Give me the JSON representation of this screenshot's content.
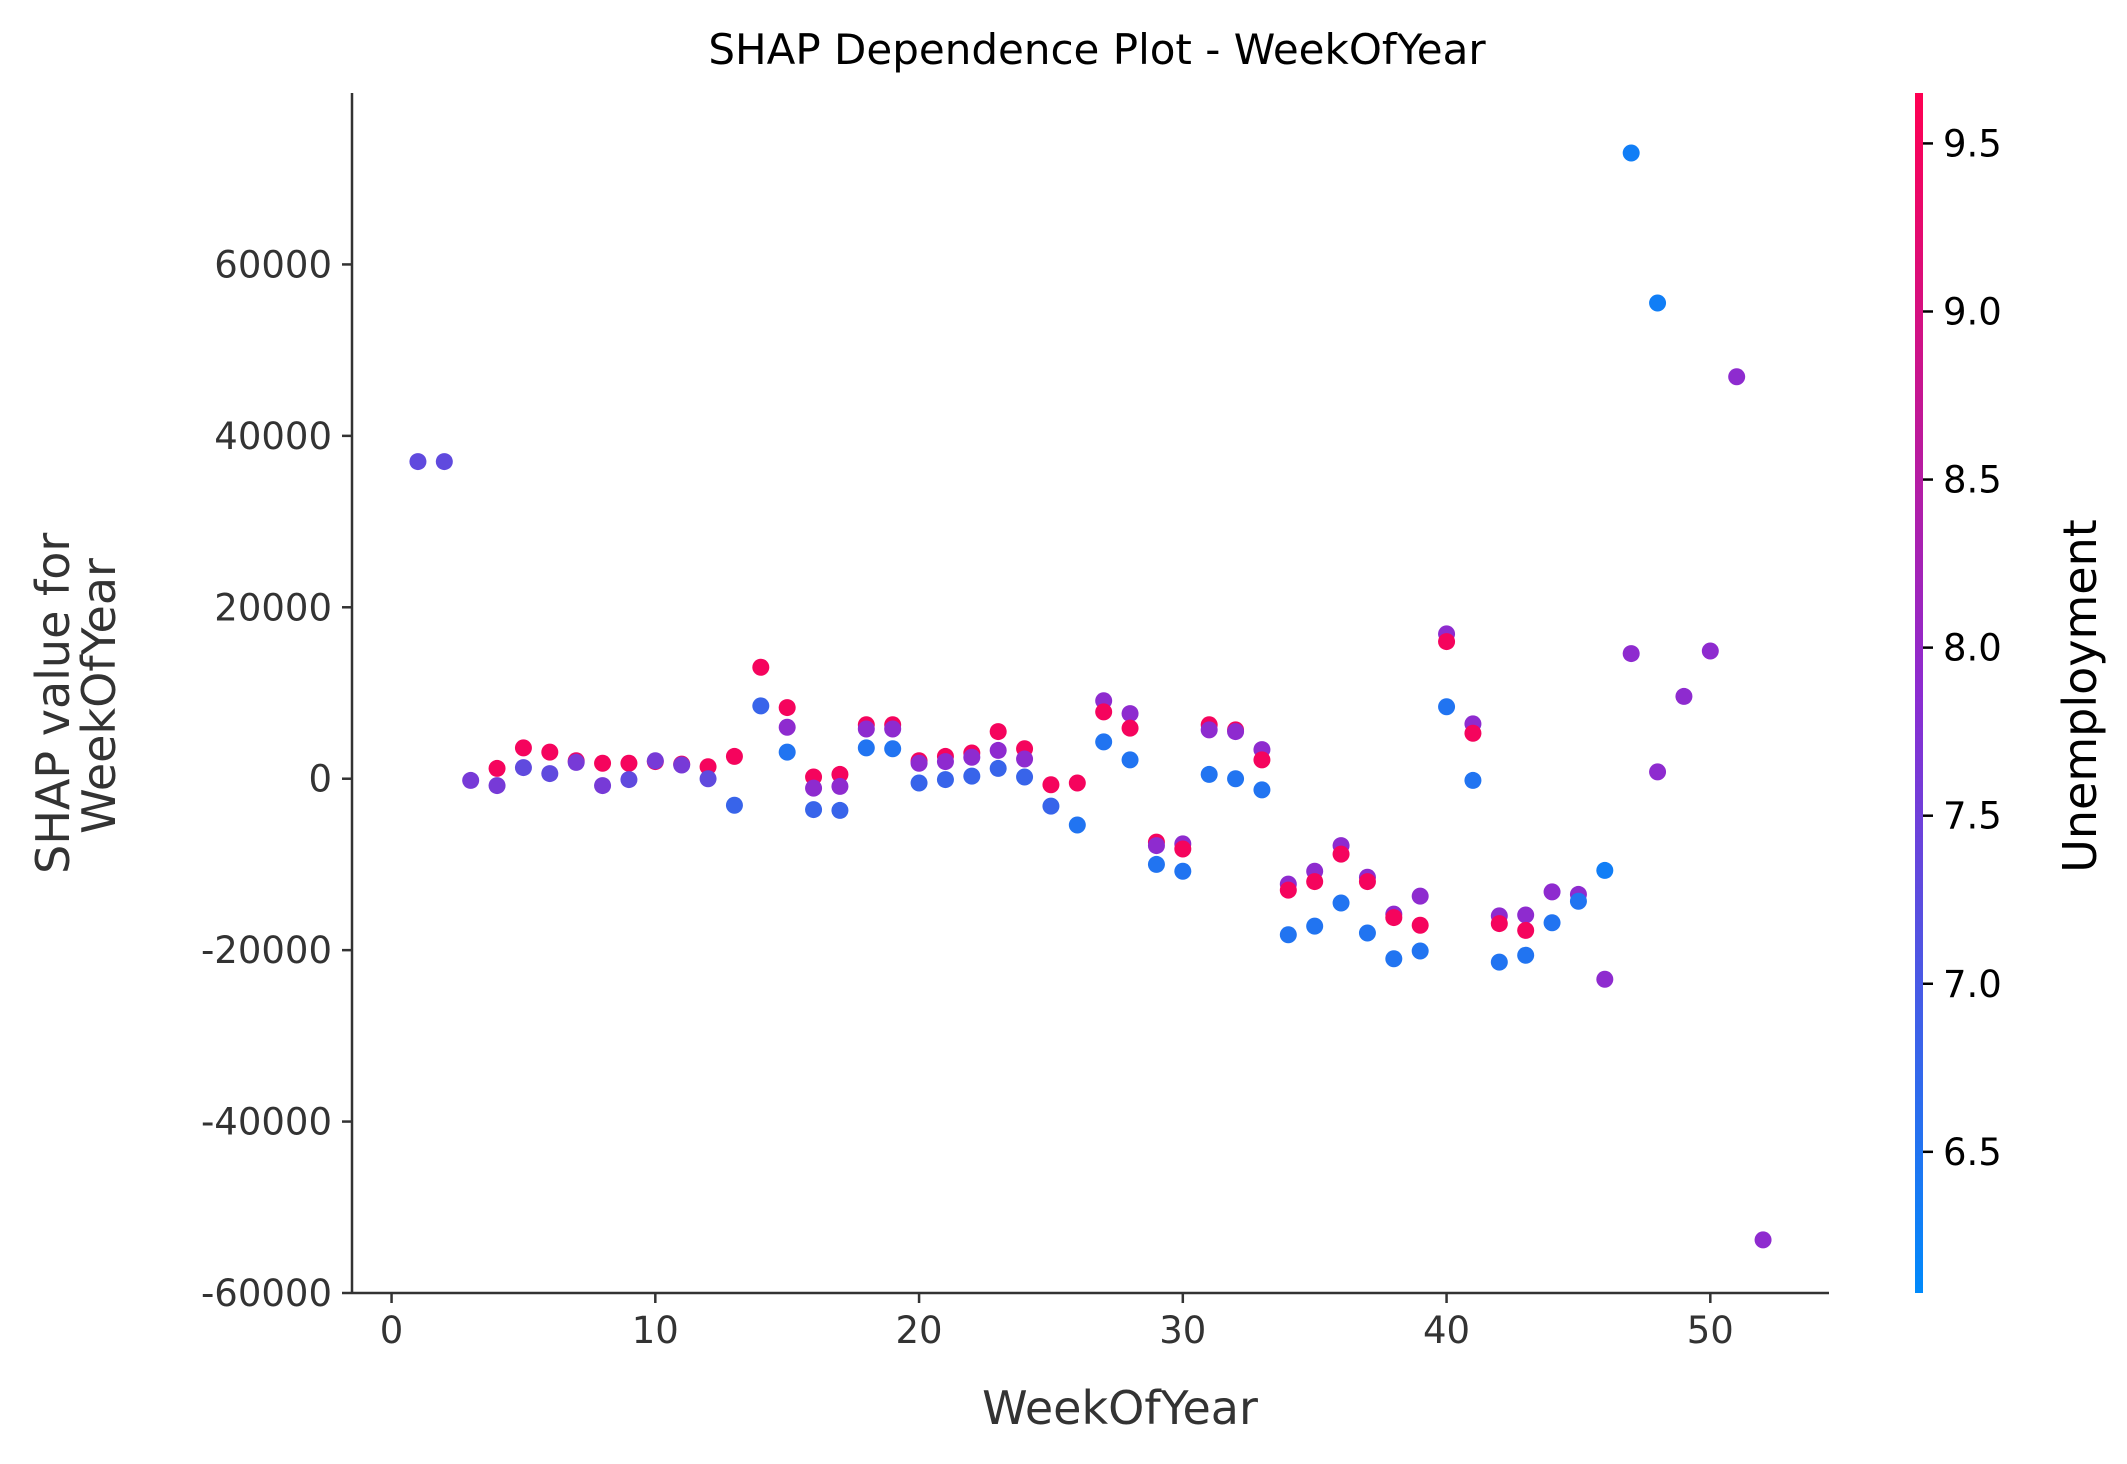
{
  "chart_data": {
    "type": "scatter",
    "title": "SHAP Dependence Plot - WeekOfYear",
    "xlabel": "WeekOfYear",
    "ylabel_lines": [
      "SHAP value for",
      "WeekOfYear"
    ],
    "xlim": [
      -1.5,
      54.5
    ],
    "ylim": [
      -60000,
      80000
    ],
    "xticks": [
      0,
      10,
      20,
      30,
      40,
      50
    ],
    "yticks": [
      -60000,
      -40000,
      -20000,
      0,
      20000,
      40000,
      60000
    ],
    "grid": false,
    "colorbar": {
      "label": "Unemployment",
      "range": [
        6.08,
        9.65
      ],
      "ticks": [
        6.5,
        7.0,
        7.5,
        8.0,
        8.5,
        9.0,
        9.5
      ],
      "color_low": "#008afb",
      "color_mid": "#8c2cd1",
      "color_high": "#ff0052"
    },
    "points": [
      {
        "x": 1,
        "y": 37000,
        "c": 7.3
      },
      {
        "x": 2,
        "y": 37000,
        "c": 7.3
      },
      {
        "x": 3,
        "y": -200,
        "c": 7.6
      },
      {
        "x": 4,
        "y": 1200,
        "c": 9.5
      },
      {
        "x": 4,
        "y": -800,
        "c": 7.6
      },
      {
        "x": 5,
        "y": 3600,
        "c": 9.5
      },
      {
        "x": 5,
        "y": 1300,
        "c": 7.3
      },
      {
        "x": 6,
        "y": 3100,
        "c": 9.5
      },
      {
        "x": 6,
        "y": 600,
        "c": 7.3
      },
      {
        "x": 7,
        "y": 2100,
        "c": 9.3
      },
      {
        "x": 7,
        "y": 1900,
        "c": 7.6
      },
      {
        "x": 8,
        "y": 1800,
        "c": 9.5
      },
      {
        "x": 8,
        "y": -800,
        "c": 7.6
      },
      {
        "x": 9,
        "y": 1800,
        "c": 9.5
      },
      {
        "x": 9,
        "y": -100,
        "c": 7.3
      },
      {
        "x": 10,
        "y": 2000,
        "c": 9.5
      },
      {
        "x": 10,
        "y": 2100,
        "c": 7.6
      },
      {
        "x": 11,
        "y": 1700,
        "c": 9.5
      },
      {
        "x": 11,
        "y": 1600,
        "c": 7.6
      },
      {
        "x": 12,
        "y": 1400,
        "c": 9.5
      },
      {
        "x": 12,
        "y": 0,
        "c": 7.3
      },
      {
        "x": 13,
        "y": 2600,
        "c": 9.5
      },
      {
        "x": 13,
        "y": -3100,
        "c": 6.8
      },
      {
        "x": 14,
        "y": 13000,
        "c": 9.5
      },
      {
        "x": 14,
        "y": 8500,
        "c": 6.8
      },
      {
        "x": 15,
        "y": 8300,
        "c": 9.5
      },
      {
        "x": 15,
        "y": 6000,
        "c": 7.9
      },
      {
        "x": 15,
        "y": 3100,
        "c": 6.5
      },
      {
        "x": 16,
        "y": 200,
        "c": 9.5
      },
      {
        "x": 16,
        "y": -1100,
        "c": 7.9
      },
      {
        "x": 16,
        "y": -3600,
        "c": 6.8
      },
      {
        "x": 17,
        "y": 500,
        "c": 9.5
      },
      {
        "x": 17,
        "y": -900,
        "c": 7.9
      },
      {
        "x": 17,
        "y": -3700,
        "c": 6.8
      },
      {
        "x": 18,
        "y": 6300,
        "c": 9.5
      },
      {
        "x": 18,
        "y": 5800,
        "c": 7.9
      },
      {
        "x": 18,
        "y": 3600,
        "c": 6.5
      },
      {
        "x": 19,
        "y": 6300,
        "c": 9.5
      },
      {
        "x": 19,
        "y": 5800,
        "c": 7.9
      },
      {
        "x": 19,
        "y": 3500,
        "c": 6.5
      },
      {
        "x": 20,
        "y": 2100,
        "c": 9.5
      },
      {
        "x": 20,
        "y": 1800,
        "c": 7.9
      },
      {
        "x": 20,
        "y": -500,
        "c": 6.8
      },
      {
        "x": 21,
        "y": 2600,
        "c": 9.5
      },
      {
        "x": 21,
        "y": 2000,
        "c": 7.9
      },
      {
        "x": 21,
        "y": -100,
        "c": 6.8
      },
      {
        "x": 22,
        "y": 3000,
        "c": 9.5
      },
      {
        "x": 22,
        "y": 2500,
        "c": 7.9
      },
      {
        "x": 22,
        "y": 300,
        "c": 6.8
      },
      {
        "x": 23,
        "y": 5500,
        "c": 9.5
      },
      {
        "x": 23,
        "y": 3300,
        "c": 7.9
      },
      {
        "x": 23,
        "y": 1200,
        "c": 6.8
      },
      {
        "x": 24,
        "y": 3500,
        "c": 9.5
      },
      {
        "x": 24,
        "y": 2300,
        "c": 7.9
      },
      {
        "x": 24,
        "y": 200,
        "c": 6.8
      },
      {
        "x": 25,
        "y": -700,
        "c": 9.5
      },
      {
        "x": 25,
        "y": -3200,
        "c": 6.8
      },
      {
        "x": 26,
        "y": -500,
        "c": 9.5
      },
      {
        "x": 26,
        "y": -5400,
        "c": 6.5
      },
      {
        "x": 27,
        "y": 9100,
        "c": 7.9
      },
      {
        "x": 27,
        "y": 7800,
        "c": 9.5
      },
      {
        "x": 27,
        "y": 4300,
        "c": 6.5
      },
      {
        "x": 28,
        "y": 7600,
        "c": 7.9
      },
      {
        "x": 28,
        "y": 5900,
        "c": 9.5
      },
      {
        "x": 28,
        "y": 2200,
        "c": 6.5
      },
      {
        "x": 29,
        "y": -7400,
        "c": 9.5
      },
      {
        "x": 29,
        "y": -7800,
        "c": 7.9
      },
      {
        "x": 29,
        "y": -10000,
        "c": 6.5
      },
      {
        "x": 30,
        "y": -7600,
        "c": 7.9
      },
      {
        "x": 30,
        "y": -8200,
        "c": 9.5
      },
      {
        "x": 30,
        "y": -10800,
        "c": 6.5
      },
      {
        "x": 31,
        "y": 6300,
        "c": 9.5
      },
      {
        "x": 31,
        "y": 5700,
        "c": 7.9
      },
      {
        "x": 31,
        "y": 500,
        "c": 6.5
      },
      {
        "x": 32,
        "y": 5700,
        "c": 9.5
      },
      {
        "x": 32,
        "y": 5500,
        "c": 7.9
      },
      {
        "x": 32,
        "y": 0,
        "c": 6.5
      },
      {
        "x": 33,
        "y": 3400,
        "c": 7.9
      },
      {
        "x": 33,
        "y": 2200,
        "c": 9.5
      },
      {
        "x": 33,
        "y": -1300,
        "c": 6.5
      },
      {
        "x": 34,
        "y": -12300,
        "c": 7.9
      },
      {
        "x": 34,
        "y": -13000,
        "c": 9.5
      },
      {
        "x": 34,
        "y": -18200,
        "c": 6.5
      },
      {
        "x": 35,
        "y": -10800,
        "c": 7.9
      },
      {
        "x": 35,
        "y": -12000,
        "c": 9.5
      },
      {
        "x": 35,
        "y": -17200,
        "c": 6.5
      },
      {
        "x": 36,
        "y": -7800,
        "c": 7.9
      },
      {
        "x": 36,
        "y": -8800,
        "c": 9.5
      },
      {
        "x": 36,
        "y": -14500,
        "c": 6.5
      },
      {
        "x": 37,
        "y": -11500,
        "c": 7.9
      },
      {
        "x": 37,
        "y": -12000,
        "c": 9.5
      },
      {
        "x": 37,
        "y": -18000,
        "c": 6.5
      },
      {
        "x": 38,
        "y": -15800,
        "c": 7.9
      },
      {
        "x": 38,
        "y": -16200,
        "c": 9.5
      },
      {
        "x": 38,
        "y": -21000,
        "c": 6.5
      },
      {
        "x": 39,
        "y": -13700,
        "c": 7.9
      },
      {
        "x": 39,
        "y": -17100,
        "c": 9.5
      },
      {
        "x": 39,
        "y": -20100,
        "c": 6.5
      },
      {
        "x": 40,
        "y": 16900,
        "c": 7.9
      },
      {
        "x": 40,
        "y": 16000,
        "c": 9.5
      },
      {
        "x": 40,
        "y": 8400,
        "c": 6.5
      },
      {
        "x": 41,
        "y": 6400,
        "c": 7.9
      },
      {
        "x": 41,
        "y": 5300,
        "c": 9.5
      },
      {
        "x": 41,
        "y": -200,
        "c": 6.5
      },
      {
        "x": 42,
        "y": -16000,
        "c": 7.9
      },
      {
        "x": 42,
        "y": -16900,
        "c": 9.5
      },
      {
        "x": 42,
        "y": -21400,
        "c": 6.5
      },
      {
        "x": 43,
        "y": -15900,
        "c": 7.9
      },
      {
        "x": 43,
        "y": -17700,
        "c": 9.5
      },
      {
        "x": 43,
        "y": -20600,
        "c": 6.5
      },
      {
        "x": 44,
        "y": -13200,
        "c": 7.9
      },
      {
        "x": 44,
        "y": -16800,
        "c": 6.5
      },
      {
        "x": 45,
        "y": -13500,
        "c": 7.9
      },
      {
        "x": 45,
        "y": -14300,
        "c": 6.5
      },
      {
        "x": 46,
        "y": -10700,
        "c": 6.3
      },
      {
        "x": 46,
        "y": -23400,
        "c": 7.9
      },
      {
        "x": 47,
        "y": 73000,
        "c": 6.3
      },
      {
        "x": 47,
        "y": 14600,
        "c": 7.9
      },
      {
        "x": 48,
        "y": 55500,
        "c": 6.3
      },
      {
        "x": 48,
        "y": 800,
        "c": 7.9
      },
      {
        "x": 49,
        "y": 9600,
        "c": 7.9
      },
      {
        "x": 50,
        "y": 14900,
        "c": 7.9
      },
      {
        "x": 51,
        "y": 46900,
        "c": 7.9
      },
      {
        "x": 52,
        "y": -53800,
        "c": 7.9
      }
    ]
  }
}
